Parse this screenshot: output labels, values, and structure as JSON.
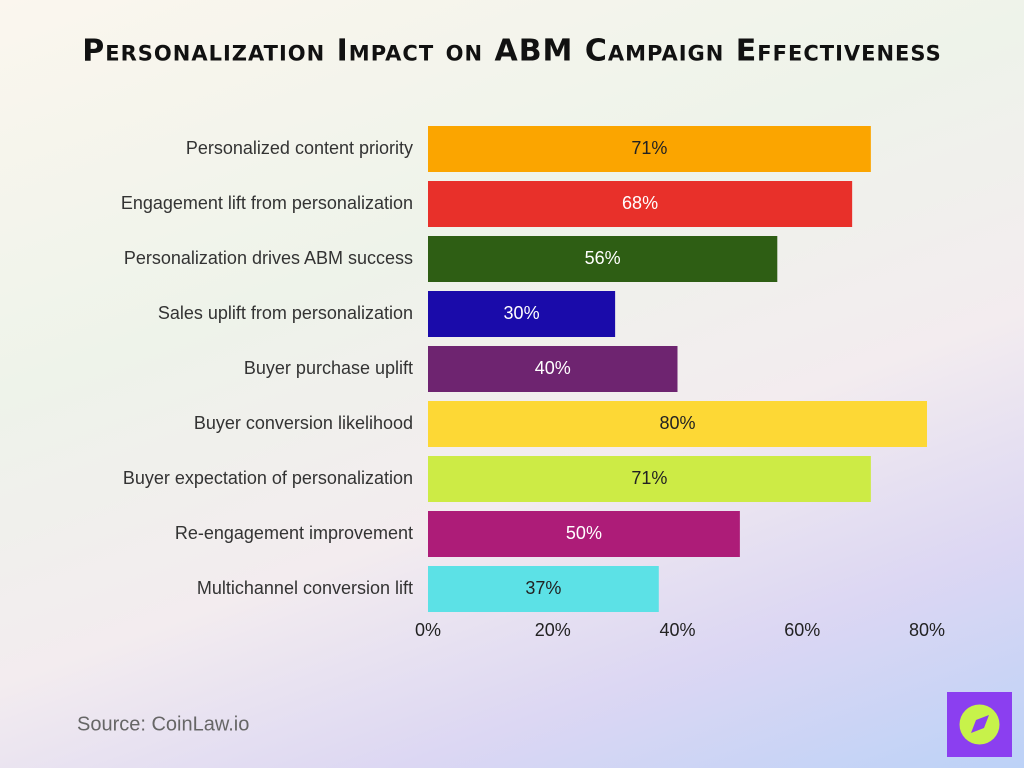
{
  "chart_data": {
    "type": "bar",
    "orientation": "horizontal",
    "title": "Personalization Impact on ABM Campaign Effectiveness",
    "categories": [
      "Personalized content priority",
      "Engagement lift from personalization",
      "Personalization drives ABM success",
      "Sales uplift from personalization",
      "Buyer purchase uplift",
      "Buyer conversion likelihood",
      "Buyer expectation of personalization",
      "Re-engagement improvement",
      "Multichannel conversion lift"
    ],
    "values": [
      71,
      68,
      56,
      30,
      40,
      80,
      71,
      50,
      37
    ],
    "value_labels": [
      "71%",
      "68%",
      "56%",
      "30%",
      "40%",
      "80%",
      "71%",
      "50%",
      "37%"
    ],
    "colors": [
      "#fba500",
      "#e8302a",
      "#2e5e14",
      "#1a0baa",
      "#6e2470",
      "#fdd835",
      "#cdeb45",
      "#ad1c78",
      "#5ce1e6"
    ],
    "xlim": [
      0,
      80
    ],
    "xticks": [
      {
        "value": 0,
        "label": "0%"
      },
      {
        "value": 20,
        "label": "20%"
      },
      {
        "value": 40,
        "label": "40%"
      },
      {
        "value": 60,
        "label": "60%"
      },
      {
        "value": 80,
        "label": "80%"
      }
    ],
    "grid": false,
    "source": "Source: CoinLaw.io"
  }
}
